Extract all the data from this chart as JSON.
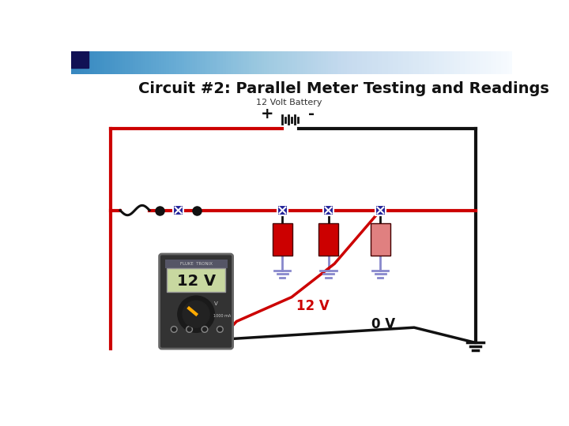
{
  "title": "Circuit #2: Parallel Meter Testing and Readings",
  "title_fontsize": 14,
  "battery_label": "12 Volt Battery",
  "battery_plus": "+",
  "battery_minus": "-",
  "reading_12v": "12 V",
  "reading_0v": "0 V",
  "multimeter_reading": "12 V",
  "bg_color": "#ffffff",
  "wire_red": "#cc0000",
  "wire_black": "#111111",
  "wire_blue": "#8888cc",
  "resistor_color": "#cc0000",
  "resistor_light": "#e08080",
  "node_color": "#111111",
  "switch_color": "#222299",
  "meter_bg": "#333333",
  "meter_display": "#c8d8a0",
  "meter_knob": "#222222"
}
